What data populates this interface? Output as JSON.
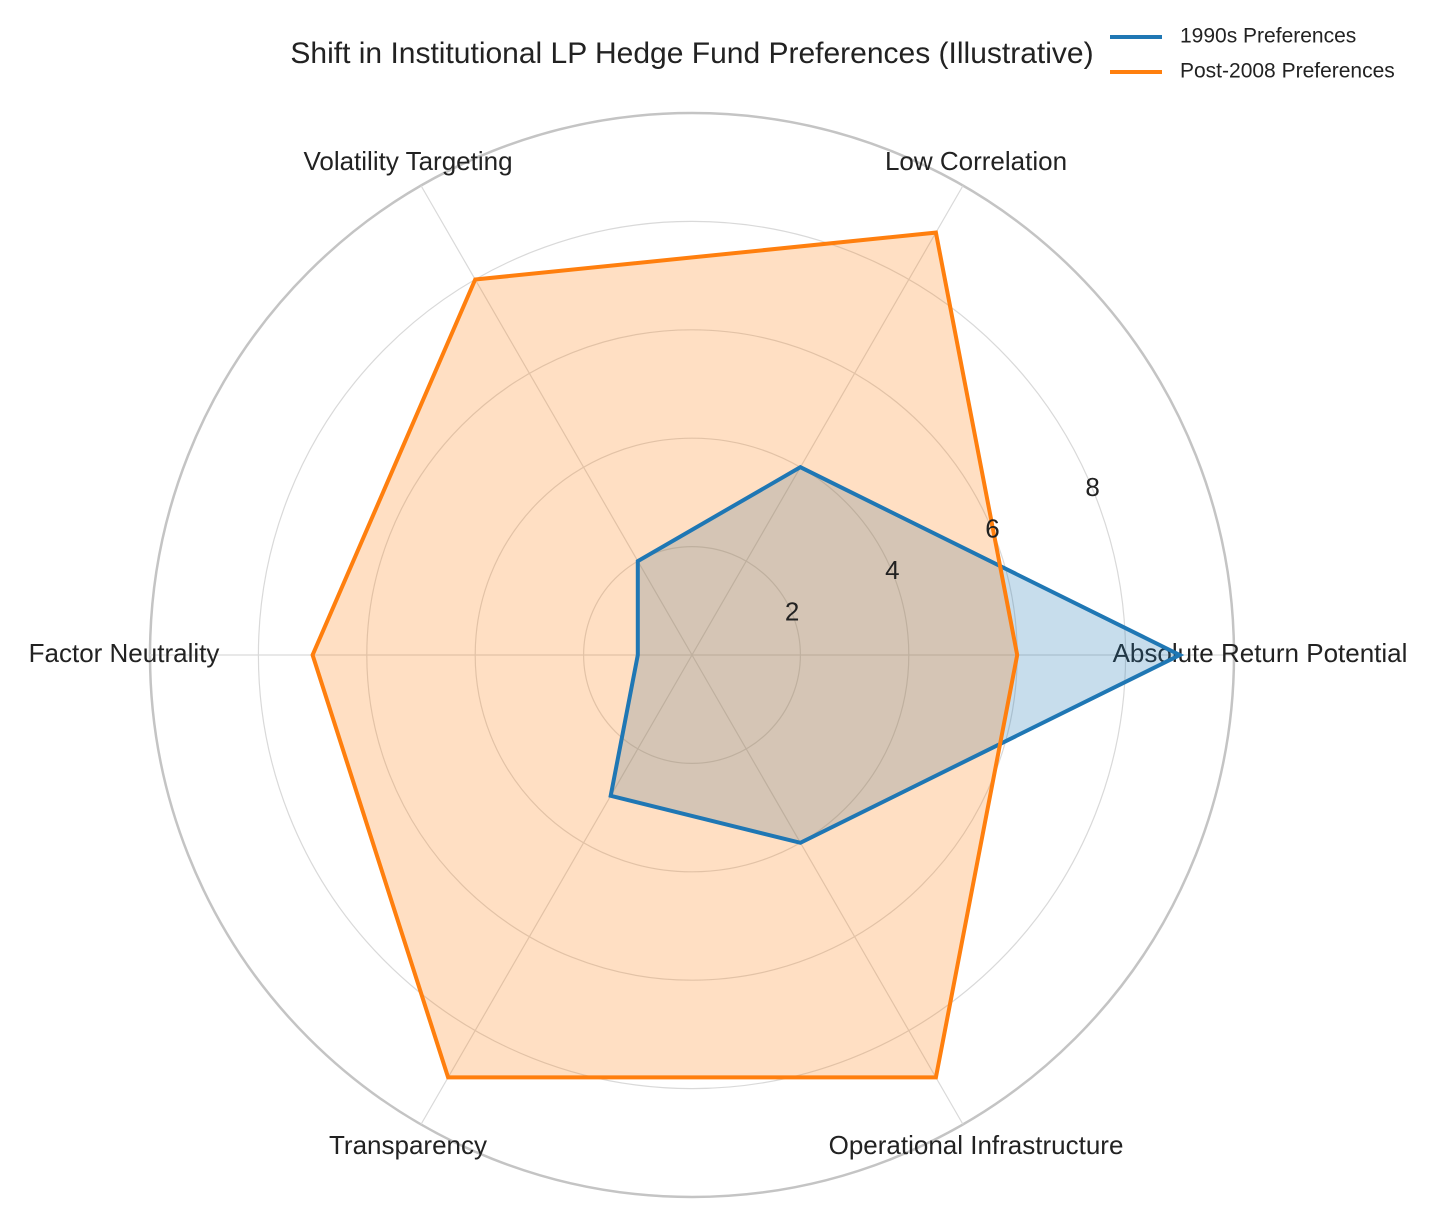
{
  "chart_data": {
    "type": "radar",
    "title": "Shift in Institutional LP Hedge Fund Preferences (Illustrative)",
    "categories": [
      "Absolute Return Potential",
      "Low Correlation",
      "Volatility Targeting",
      "Factor Neutrality",
      "Transparency",
      "Operational Infrastructure"
    ],
    "series": [
      {
        "name": "1990s Preferences",
        "color": "#1f77b4",
        "values": [
          9,
          4,
          2,
          1,
          3,
          4
        ]
      },
      {
        "name": "Post-2008 Preferences",
        "color": "#ff7f0e",
        "values": [
          6,
          9,
          8,
          7,
          9,
          9
        ]
      }
    ],
    "ylim": [
      0,
      10
    ],
    "yticks": [
      2,
      4,
      6,
      8
    ],
    "grid": true,
    "legend": "upper right"
  }
}
